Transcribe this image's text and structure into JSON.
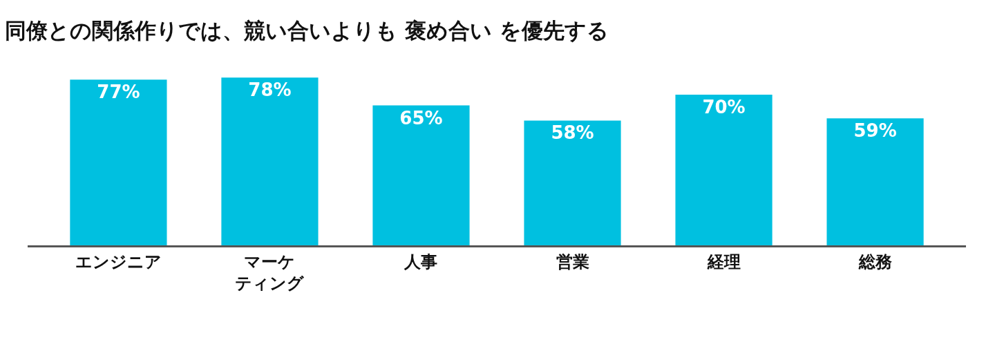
{
  "chart_data": {
    "type": "bar",
    "title": "同僚との関係作りでは、競い合いよりも 褒め合い を優先する",
    "categories": [
      "エンジニア",
      "マーケティング",
      "人事",
      "営業",
      "経理",
      "総務"
    ],
    "values": [
      77,
      78,
      65,
      58,
      70,
      59
    ],
    "color": "#00c0e0",
    "data_labels": true,
    "value_labels": [
      "77%",
      "78%",
      "65%",
      "58%",
      "70%",
      "59%"
    ]
  }
}
